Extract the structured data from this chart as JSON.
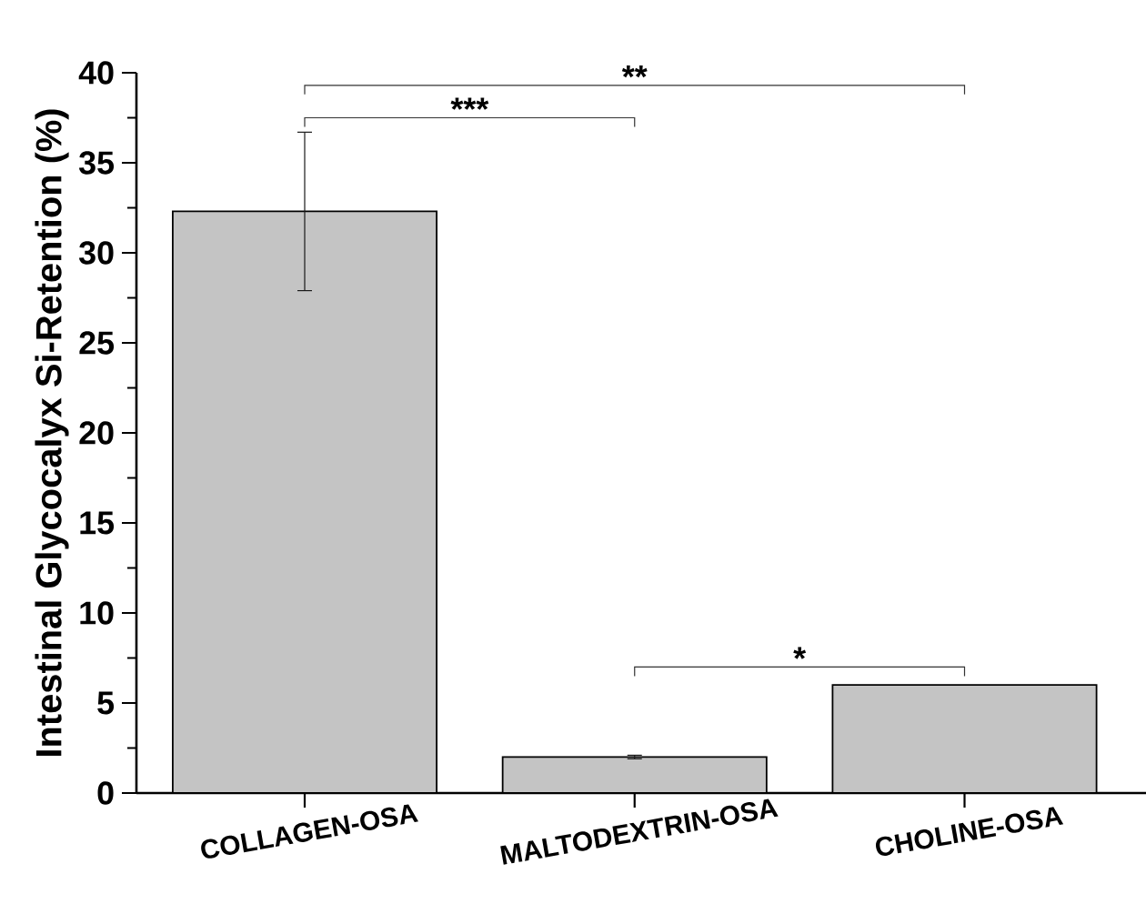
{
  "chart_data": {
    "type": "bar",
    "ylabel": "Intestinal Glycocalyx Si-Retention (%)",
    "categories": [
      "COLLAGEN-OSA",
      "MALTODEXTRIN-OSA",
      "CHOLINE-OSA"
    ],
    "values": [
      32.3,
      2.0,
      6.0
    ],
    "errors": [
      [
        27.9,
        36.7
      ],
      0.1,
      null
    ],
    "color": "#c4c4c4",
    "ylim": [
      0,
      40
    ],
    "yticks": [
      0,
      5,
      10,
      15,
      20,
      25,
      30,
      35,
      40
    ],
    "annotations": [
      "***",
      "**",
      "*"
    ]
  }
}
